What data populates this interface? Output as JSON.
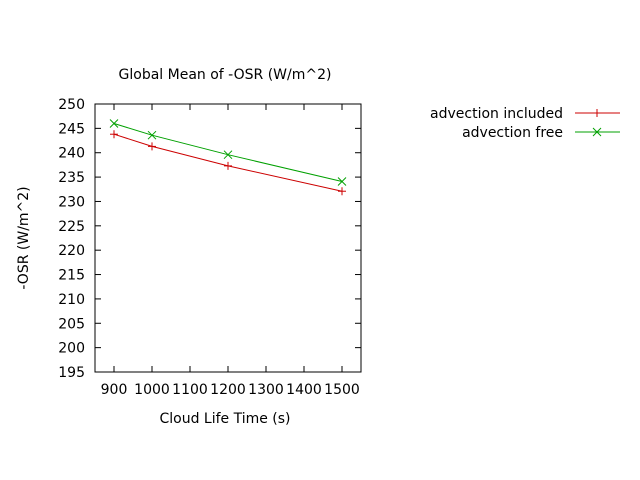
{
  "chart_data": {
    "type": "line",
    "title": "Global Mean of -OSR (W/m^2)",
    "xlabel": "Cloud Life Time (s)",
    "ylabel": "-OSR (W/m^2)",
    "xlim": [
      850,
      1550
    ],
    "ylim": [
      195,
      250
    ],
    "xticks": [
      "900",
      "1000",
      "1100",
      "1200",
      "1300",
      "1400",
      "1500"
    ],
    "yticks": [
      "195",
      "200",
      "205",
      "210",
      "215",
      "220",
      "225",
      "230",
      "235",
      "240",
      "245",
      "250"
    ],
    "grid": false,
    "legend_position": "top-right outside",
    "x": [
      900,
      1000,
      1200,
      1500
    ],
    "series": [
      {
        "name": "advection included",
        "values": [
          243.8,
          241.3,
          237.3,
          232.1
        ],
        "color": "#cc0000",
        "marker": "plus"
      },
      {
        "name": "advection free",
        "values": [
          246.0,
          243.6,
          239.6,
          234.1
        ],
        "color": "#00a000",
        "marker": "cross"
      }
    ]
  }
}
